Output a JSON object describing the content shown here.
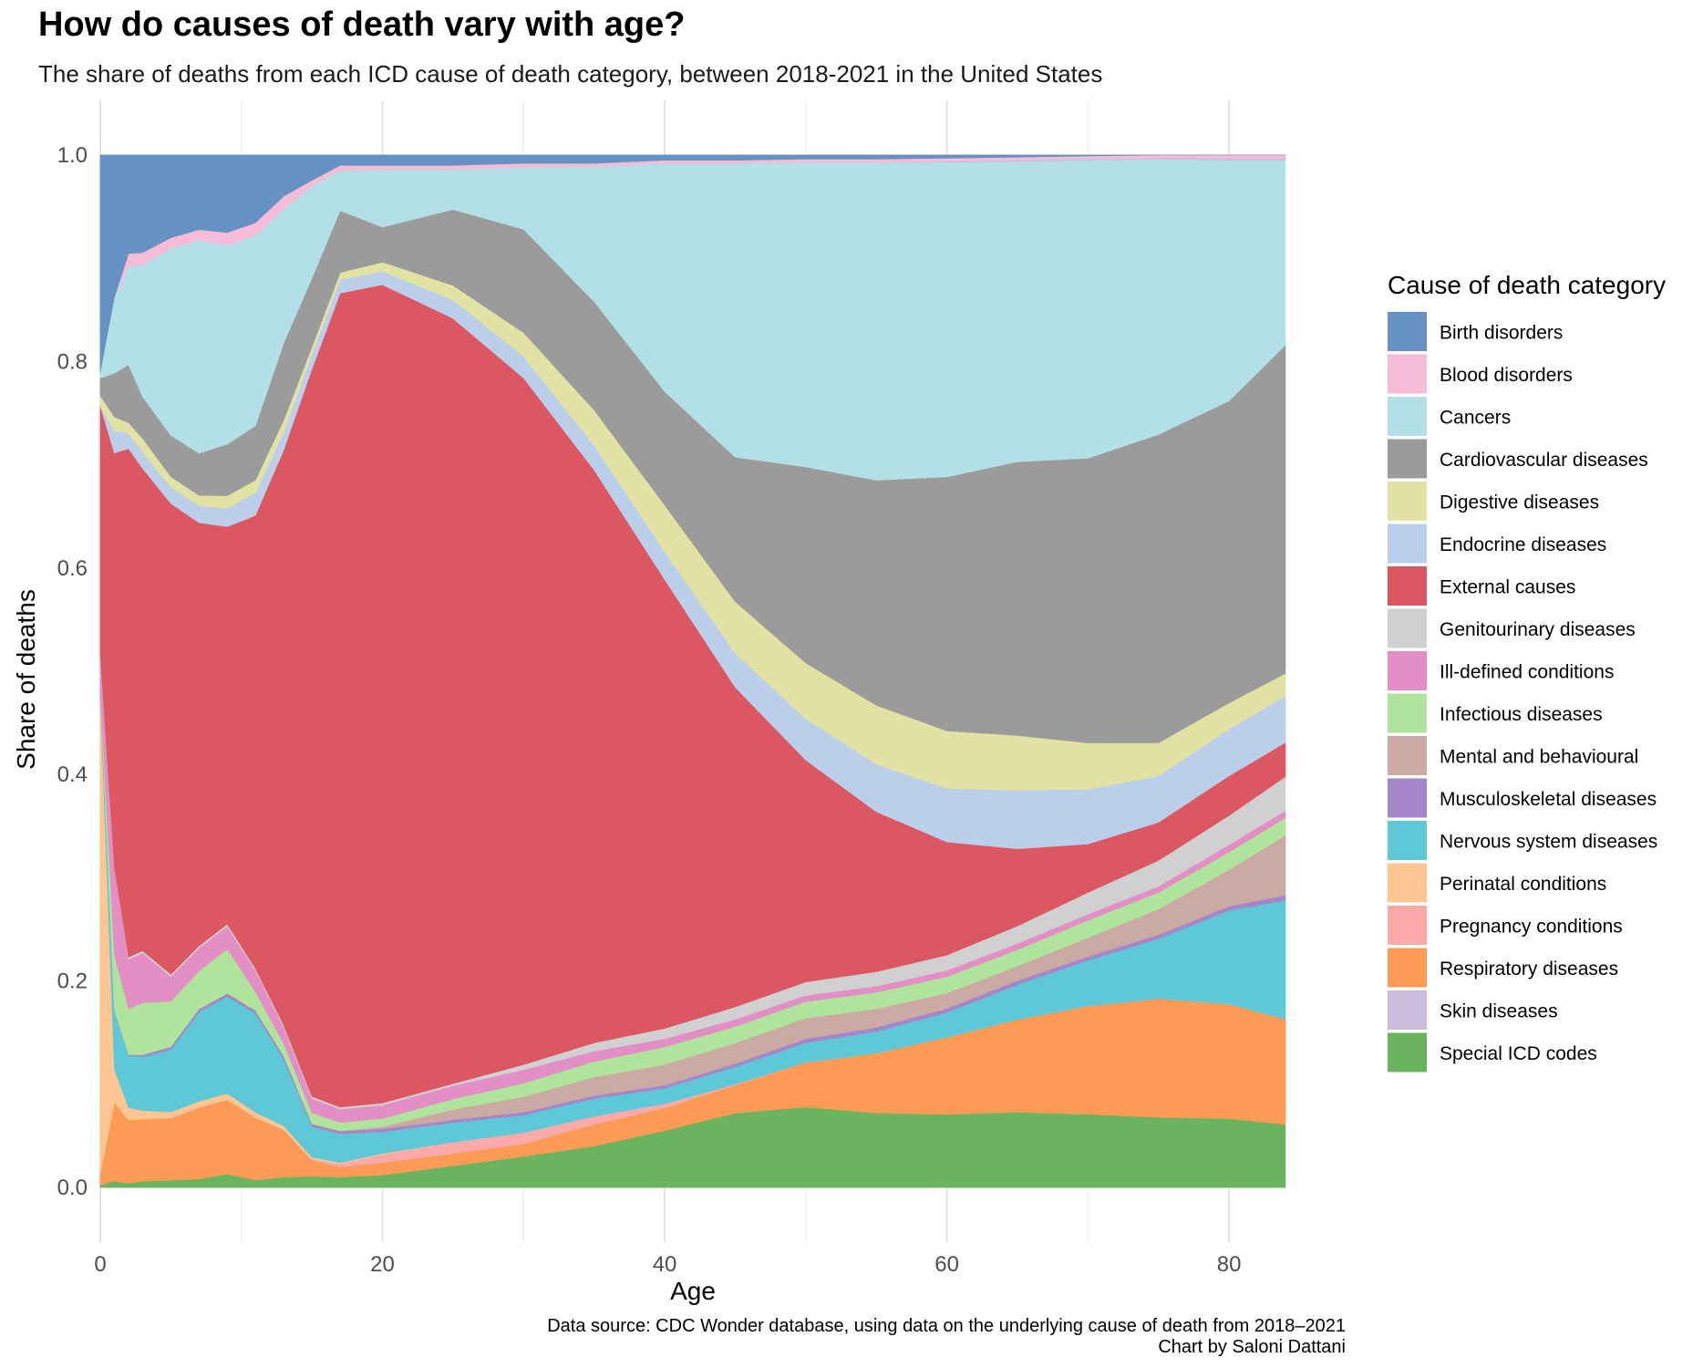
{
  "chart_data": {
    "type": "area",
    "stacked": true,
    "normalized": true,
    "title": "How do causes of death vary with age?",
    "subtitle": "The share of deaths from each ICD cause of death category, between 2018-2021 in the United States",
    "xlabel": "Age",
    "ylabel": "Share of deaths",
    "xlim": [
      0,
      84
    ],
    "ylim": [
      0,
      1
    ],
    "x_ticks": [
      0,
      20,
      40,
      60,
      80
    ],
    "y_ticks": [
      "0.0",
      "0.2",
      "0.4",
      "0.6",
      "0.8",
      "1.0"
    ],
    "grid": true,
    "legend_title": "Cause of death category",
    "legend_position": "right",
    "caption": [
      "Data source: CDC Wonder database, using data on the underlying cause of death from 2018–2021",
      "Chart by Saloni Dattani"
    ],
    "x": [
      0,
      1,
      2,
      3,
      5,
      7,
      9,
      11,
      13,
      15,
      17,
      20,
      25,
      30,
      35,
      40,
      45,
      50,
      55,
      60,
      65,
      70,
      75,
      80,
      84
    ],
    "series": [
      {
        "name": "Special ICD codes",
        "color": "#6ab460",
        "values": [
          0.002,
          0.006,
          0.004,
          0.006,
          0.007,
          0.008,
          0.013,
          0.007,
          0.01,
          0.011,
          0.01,
          0.012,
          0.021,
          0.03,
          0.04,
          0.055,
          0.072,
          0.078,
          0.072,
          0.071,
          0.073,
          0.071,
          0.068,
          0.066,
          0.061
        ]
      },
      {
        "name": "Respiratory diseases",
        "color": "#fd9b56",
        "values": [
          0.012,
          0.072,
          0.061,
          0.06,
          0.06,
          0.068,
          0.072,
          0.06,
          0.046,
          0.016,
          0.01,
          0.012,
          0.012,
          0.012,
          0.021,
          0.022,
          0.027,
          0.043,
          0.058,
          0.075,
          0.09,
          0.105,
          0.115,
          0.11,
          0.102
        ]
      },
      {
        "name": "Pregnancy conditions",
        "color": "#fca9a9",
        "values": [
          0.0,
          0.0,
          0.0,
          0.0,
          0.0,
          0.0,
          0.0,
          0.0,
          0.0,
          0.001,
          0.003,
          0.008,
          0.011,
          0.011,
          0.008,
          0.004,
          0.001,
          0.0,
          0.0,
          0.0,
          0.0,
          0.0,
          0.0,
          0.0,
          0.0
        ]
      },
      {
        "name": "Perinatal conditions",
        "color": "#fec692",
        "values": [
          0.46,
          0.03,
          0.012,
          0.008,
          0.006,
          0.006,
          0.006,
          0.005,
          0.004,
          0.002,
          0.001,
          0.001,
          0.0,
          0.0,
          0.0,
          0.0,
          0.0,
          0.0,
          0.0,
          0.0,
          0.0,
          0.0,
          0.0,
          0.0,
          0.0
        ]
      },
      {
        "name": "Nervous system diseases",
        "color": "#5ec8d6",
        "values": [
          0.006,
          0.055,
          0.05,
          0.052,
          0.06,
          0.085,
          0.094,
          0.095,
          0.065,
          0.03,
          0.028,
          0.021,
          0.019,
          0.017,
          0.017,
          0.015,
          0.017,
          0.019,
          0.021,
          0.024,
          0.034,
          0.044,
          0.058,
          0.09,
          0.115
        ]
      },
      {
        "name": "Musculoskeletal diseases",
        "color": "#a587c9",
        "values": [
          0.0,
          0.0,
          0.001,
          0.002,
          0.003,
          0.003,
          0.003,
          0.003,
          0.003,
          0.003,
          0.003,
          0.003,
          0.003,
          0.003,
          0.003,
          0.003,
          0.003,
          0.004,
          0.004,
          0.004,
          0.004,
          0.004,
          0.004,
          0.004,
          0.005
        ]
      },
      {
        "name": "Mental and behavioural",
        "color": "#cbaaa3",
        "values": [
          0.0,
          0.0,
          0.0,
          0.0,
          0.0,
          0.0,
          0.0,
          0.0,
          0.0,
          0.0,
          0.0,
          0.002,
          0.01,
          0.015,
          0.018,
          0.02,
          0.02,
          0.02,
          0.018,
          0.015,
          0.014,
          0.018,
          0.025,
          0.035,
          0.058
        ]
      },
      {
        "name": "Infectious diseases",
        "color": "#b0e39b",
        "values": [
          0.002,
          0.05,
          0.044,
          0.05,
          0.044,
          0.036,
          0.043,
          0.018,
          0.012,
          0.011,
          0.008,
          0.008,
          0.01,
          0.013,
          0.015,
          0.017,
          0.016,
          0.016,
          0.016,
          0.016,
          0.016,
          0.017,
          0.016,
          0.017,
          0.017
        ]
      },
      {
        "name": "Ill-defined conditions",
        "color": "#e48ec6",
        "values": [
          0.035,
          0.08,
          0.048,
          0.048,
          0.024,
          0.022,
          0.022,
          0.02,
          0.016,
          0.014,
          0.013,
          0.013,
          0.013,
          0.013,
          0.01,
          0.008,
          0.007,
          0.006,
          0.006,
          0.006,
          0.006,
          0.006,
          0.006,
          0.007,
          0.007
        ]
      },
      {
        "name": "Genitourinary diseases",
        "color": "#d0d0d0",
        "values": [
          0.0,
          0.0,
          0.002,
          0.002,
          0.002,
          0.002,
          0.002,
          0.002,
          0.002,
          0.002,
          0.002,
          0.002,
          0.002,
          0.005,
          0.008,
          0.01,
          0.012,
          0.013,
          0.014,
          0.015,
          0.017,
          0.021,
          0.025,
          0.028,
          0.033
        ]
      },
      {
        "name": "External causes",
        "color": "#db5862",
        "values": [
          0.24,
          0.38,
          0.49,
          0.465,
          0.455,
          0.403,
          0.385,
          0.435,
          0.56,
          0.72,
          0.79,
          0.795,
          0.745,
          0.665,
          0.555,
          0.435,
          0.31,
          0.215,
          0.155,
          0.11,
          0.075,
          0.047,
          0.037,
          0.038,
          0.033
        ]
      },
      {
        "name": "Endocrine diseases",
        "color": "#bccfea",
        "values": [
          0.0,
          0.02,
          0.015,
          0.016,
          0.016,
          0.016,
          0.018,
          0.022,
          0.017,
          0.015,
          0.013,
          0.013,
          0.018,
          0.021,
          0.024,
          0.027,
          0.033,
          0.04,
          0.046,
          0.052,
          0.057,
          0.053,
          0.045,
          0.045,
          0.045
        ]
      },
      {
        "name": "Digestive diseases",
        "color": "#e1e2a4",
        "values": [
          0.01,
          0.013,
          0.01,
          0.013,
          0.01,
          0.01,
          0.012,
          0.012,
          0.012,
          0.007,
          0.007,
          0.009,
          0.014,
          0.023,
          0.034,
          0.045,
          0.05,
          0.054,
          0.057,
          0.056,
          0.053,
          0.045,
          0.032,
          0.025,
          0.022
        ]
      },
      {
        "name": "Cardiovascular diseases",
        "color": "#9b9b9b",
        "values": [
          0.017,
          0.04,
          0.056,
          0.04,
          0.04,
          0.04,
          0.05,
          0.052,
          0.075,
          0.068,
          0.06,
          0.034,
          0.074,
          0.1,
          0.105,
          0.11,
          0.14,
          0.19,
          0.218,
          0.247,
          0.266,
          0.276,
          0.299,
          0.29,
          0.318
        ]
      },
      {
        "name": "Cancers",
        "color": "#b3e0e6",
        "values": [
          0.006,
          0.07,
          0.095,
          0.127,
          0.181,
          0.203,
          0.193,
          0.183,
          0.131,
          0.091,
          0.039,
          0.056,
          0.039,
          0.06,
          0.131,
          0.221,
          0.285,
          0.295,
          0.308,
          0.306,
          0.292,
          0.289,
          0.267,
          0.231,
          0.179
        ]
      },
      {
        "name": "Skin diseases",
        "color": "#cbbcdc",
        "values": [
          0.0,
          0.0,
          0.0,
          0.0,
          0.0,
          0.0,
          0.0,
          0.0,
          0.0,
          0.0,
          0.0,
          0.0,
          0.0,
          0.0,
          0.0,
          0.0,
          0.0,
          0.0,
          0.0,
          0.001,
          0.001,
          0.001,
          0.001,
          0.002,
          0.002
        ]
      },
      {
        "name": "Blood disorders",
        "color": "#f6bcd7",
        "values": [
          0.0,
          0.0,
          0.012,
          0.012,
          0.01,
          0.01,
          0.012,
          0.012,
          0.012,
          0.006,
          0.005,
          0.004,
          0.004,
          0.004,
          0.003,
          0.003,
          0.003,
          0.003,
          0.003,
          0.003,
          0.003,
          0.003,
          0.003,
          0.003,
          0.003
        ]
      },
      {
        "name": "Birth disorders",
        "color": "#6592c2",
        "values": [
          0.21,
          0.13,
          0.095,
          0.094,
          0.08,
          0.071,
          0.075,
          0.065,
          0.04,
          0.025,
          0.01,
          0.01,
          0.01,
          0.008,
          0.008,
          0.005,
          0.005,
          0.004,
          0.004,
          0.003,
          0.002,
          0.001,
          0.0,
          0.0,
          0.0
        ]
      }
    ]
  }
}
